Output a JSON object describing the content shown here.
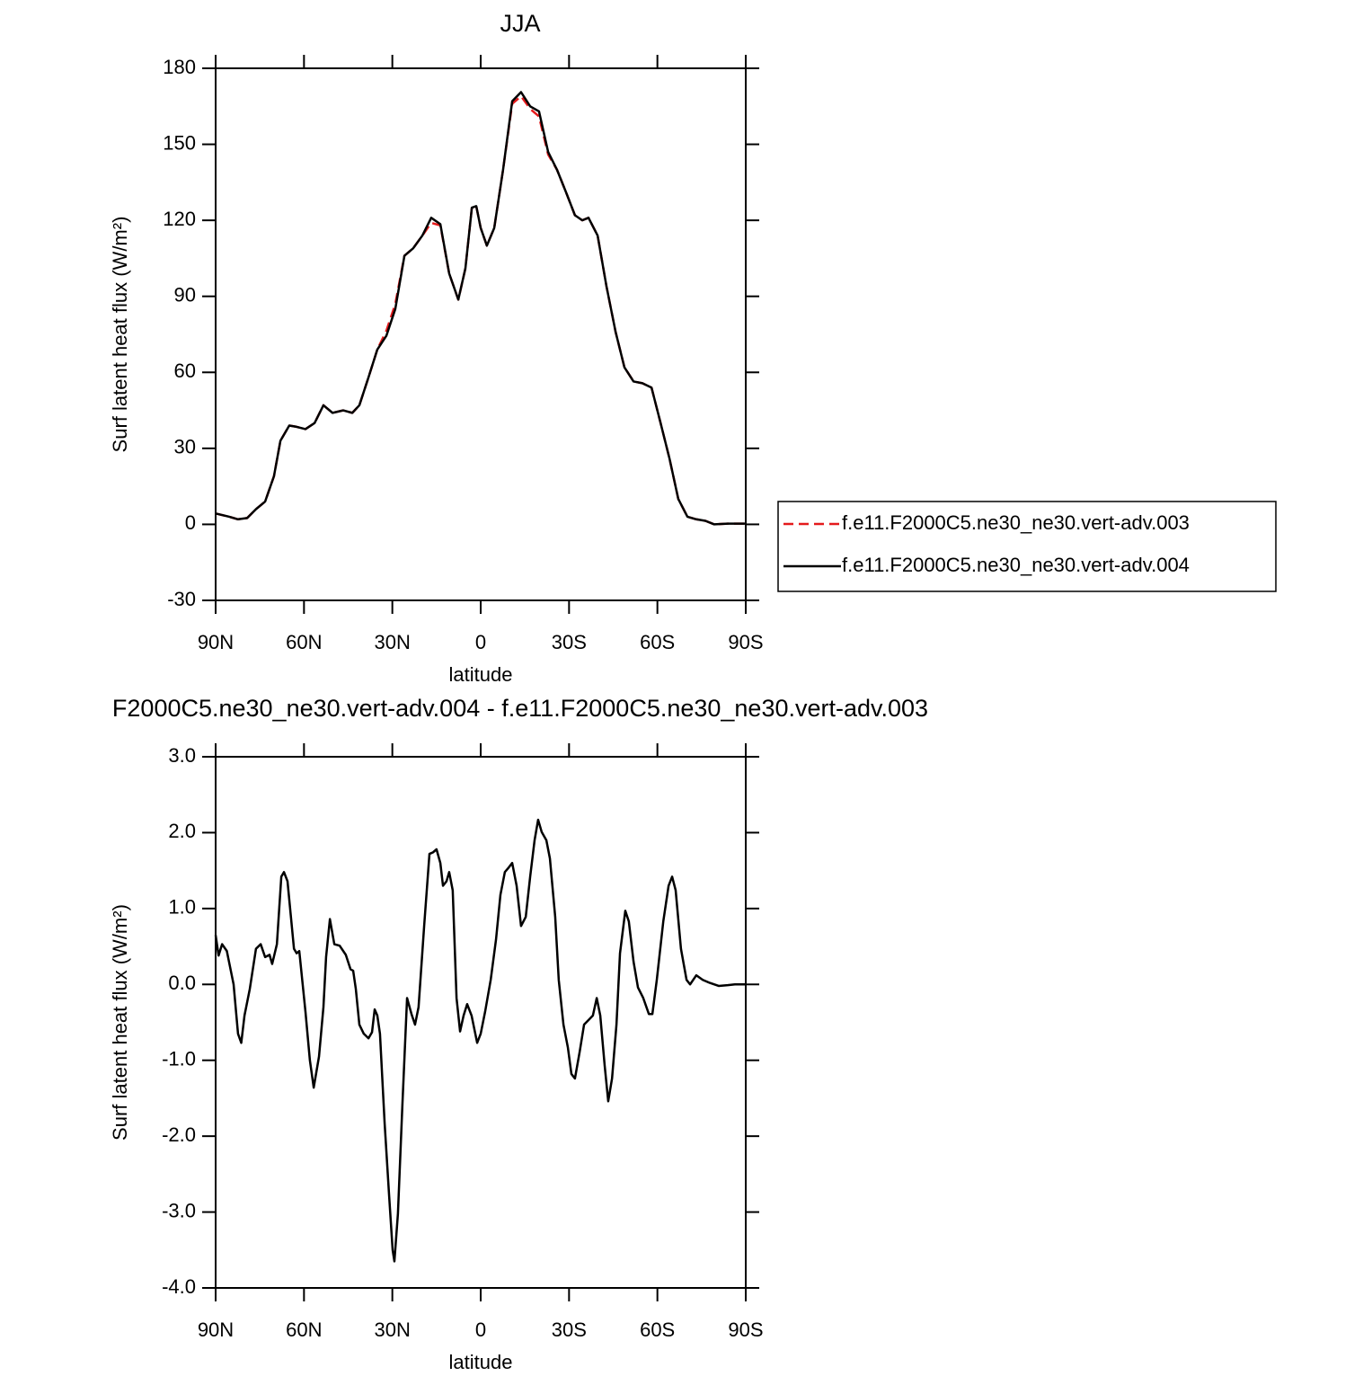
{
  "chart_data": [
    {
      "type": "line",
      "title": "JJA",
      "x_label": "latitude",
      "y_label": "Surf latent heat flux (W/m²)",
      "xlim": [
        90,
        -90
      ],
      "xticks": [
        {
          "value": 90,
          "label": "90N"
        },
        {
          "value": 60,
          "label": "60N"
        },
        {
          "value": 30,
          "label": "30N"
        },
        0,
        {
          "value": -30,
          "label": "30S"
        },
        {
          "value": -60,
          "label": "60S"
        },
        {
          "value": -90,
          "label": "90S"
        }
      ],
      "ylim": [
        -30,
        180
      ],
      "yticks": [
        -30,
        0,
        30,
        60,
        90,
        120,
        150,
        180
      ],
      "x": [
        90,
        85.4,
        82.4,
        79.3,
        76.3,
        73.2,
        70.2,
        68,
        65,
        62.5,
        59.5,
        56.4,
        53.4,
        50.3,
        46.7,
        43.6,
        41.2,
        38.1,
        35.1,
        32,
        29,
        25.9,
        22.9,
        19.8,
        16.8,
        13.7,
        10.7,
        7.6,
        5.2,
        3,
        1.5,
        0,
        -2.1,
        -4.6,
        -7.6,
        -10.7,
        -13.7,
        -16.8,
        -19.8,
        -22.9,
        -25.9,
        -29,
        -32,
        -34.5,
        -36.6,
        -39.7,
        -42.7,
        -45.8,
        -48.8,
        -51.9,
        -54.9,
        -58,
        -61,
        -64.1,
        -67.1,
        -70.2,
        -73.2,
        -76.3,
        -79.3,
        -83.9,
        -90
      ],
      "series": [
        {
          "name": "f.e11.F2000C5.ne30_ne30.vert-adv.003",
          "color": "#e41a1c",
          "line_style": "dashed",
          "values": [
            4.3,
            3,
            2,
            2.5,
            6,
            9,
            19,
            33,
            39,
            38.5,
            37.6,
            40,
            47,
            44,
            45,
            44,
            47,
            58,
            69,
            76.5,
            87,
            106,
            109,
            114,
            119,
            118,
            99,
            88.7,
            101,
            125,
            125.6,
            117,
            110,
            117,
            140,
            166,
            169,
            164,
            161,
            146,
            140,
            131,
            122,
            120,
            121,
            114,
            94,
            76,
            62,
            56.4,
            55.7,
            54,
            40.4,
            26,
            10,
            3,
            2,
            1.4,
            0,
            0.3,
            0.3
          ]
        },
        {
          "name": "f.e11.F2000C5.ne30_ne30.vert-adv.004",
          "color": "#000000",
          "line_style": "solid",
          "values": [
            4.3,
            3,
            2,
            2.5,
            6,
            9,
            19,
            33,
            39,
            38.5,
            37.6,
            40,
            47,
            44,
            45,
            44,
            47,
            58,
            69,
            74.5,
            85,
            106,
            109,
            114,
            121,
            118.5,
            99,
            88.7,
            101,
            125,
            125.6,
            117,
            110,
            117,
            140,
            167,
            170.6,
            165,
            163,
            147,
            140,
            131,
            122,
            120,
            121,
            114,
            94,
            76,
            62,
            56.4,
            55.7,
            54,
            40.4,
            26,
            10,
            3,
            2,
            1.4,
            0,
            0.3,
            0.3
          ]
        }
      ]
    },
    {
      "type": "line",
      "title": "F2000C5.ne30_ne30.vert-adv.004 - f.e11.F2000C5.ne30_ne30.vert-adv.003",
      "x_label": "latitude",
      "y_label": "Surf latent heat flux (W/m²)",
      "xlim": [
        90,
        -90
      ],
      "xticks": [
        {
          "value": 90,
          "label": "90N"
        },
        {
          "value": 60,
          "label": "60N"
        },
        {
          "value": 30,
          "label": "30N"
        },
        0,
        {
          "value": -30,
          "label": "30S"
        },
        {
          "value": -60,
          "label": "60S"
        },
        {
          "value": -90,
          "label": "90S"
        }
      ],
      "ylim": [
        -4,
        3
      ],
      "yticks": [
        {
          "value": -4,
          "label": "-4.0"
        },
        {
          "value": -3,
          "label": "-3.0"
        },
        {
          "value": -2,
          "label": "-2.0"
        },
        {
          "value": -1,
          "label": "-1.0"
        },
        {
          "value": 0,
          "label": "0.0"
        },
        {
          "value": 1,
          "label": "1.0"
        },
        {
          "value": 2,
          "label": "2.0"
        },
        {
          "value": 3,
          "label": "3.0"
        }
      ],
      "x": [
        90,
        89,
        87.8,
        86.2,
        83.9,
        82.4,
        81.3,
        80.2,
        78.4,
        76.3,
        74.7,
        73.2,
        71.7,
        70.8,
        69.2,
        67.7,
        66.8,
        65.6,
        63.4,
        62.5,
        61.6,
        59.5,
        58,
        56.7,
        54.9,
        53.4,
        52.5,
        51.2,
        49.7,
        47.9,
        45.8,
        44.2,
        43.3,
        42.4,
        41.2,
        39.7,
        38.1,
        36.9,
        36,
        35.1,
        34.2,
        32.6,
        31.1,
        29.9,
        29.3,
        28.1,
        26.6,
        25,
        23.5,
        22.3,
        21.1,
        19.2,
        17.4,
        16.2,
        15,
        13.7,
        12.8,
        11.6,
        10.7,
        9.5,
        8.2,
        7,
        5.8,
        4.6,
        3.1,
        1.2,
        0,
        -1.5,
        -3.4,
        -5.2,
        -6.7,
        -8.2,
        -9.5,
        -10.7,
        -12.2,
        -13.7,
        -15.3,
        -16.8,
        -18.3,
        -19.5,
        -20.7,
        -22.3,
        -23.5,
        -25.3,
        -26.5,
        -28.1,
        -29.6,
        -30.8,
        -32,
        -33.6,
        -35.1,
        -36.6,
        -38.1,
        -39.4,
        -40.6,
        -42.1,
        -43.3,
        -44.6,
        -46.1,
        -47.3,
        -49.1,
        -50.3,
        -51.9,
        -53.4,
        -55.2,
        -57.1,
        -58.3,
        -59.8,
        -62,
        -63.8,
        -65,
        -66.2,
        -68,
        -69.9,
        -71.1,
        -73.2,
        -75.4,
        -77.8,
        -80.8,
        -83.9,
        -86.3,
        -90
      ],
      "series": [
        {
          "color": "#000000",
          "line_style": "solid",
          "values": [
            0.65,
            0.38,
            0.53,
            0.44,
            0,
            -0.65,
            -0.77,
            -0.41,
            -0.06,
            0.47,
            0.53,
            0.36,
            0.39,
            0.27,
            0.53,
            1.42,
            1.48,
            1.36,
            0.47,
            0.41,
            0.44,
            -0.36,
            -1.0,
            -1.36,
            -0.95,
            -0.3,
            0.36,
            0.86,
            0.53,
            0.51,
            0.39,
            0.2,
            0.18,
            -0.06,
            -0.53,
            -0.65,
            -0.71,
            -0.63,
            -0.33,
            -0.41,
            -0.65,
            -1.84,
            -2.78,
            -3.5,
            -3.65,
            -3.02,
            -1.6,
            -0.18,
            -0.39,
            -0.53,
            -0.3,
            0.77,
            1.72,
            1.74,
            1.78,
            1.6,
            1.3,
            1.36,
            1.48,
            1.24,
            -0.18,
            -0.62,
            -0.41,
            -0.26,
            -0.41,
            -0.77,
            -0.65,
            -0.36,
            0.06,
            0.59,
            1.18,
            1.48,
            1.54,
            1.6,
            1.3,
            0.77,
            0.89,
            1.42,
            1.9,
            2.17,
            2.01,
            1.9,
            1.66,
            0.89,
            0.06,
            -0.53,
            -0.83,
            -1.18,
            -1.24,
            -0.89,
            -0.53,
            -0.47,
            -0.41,
            -0.18,
            -0.41,
            -1.07,
            -1.54,
            -1.24,
            -0.53,
            0.41,
            0.97,
            0.83,
            0.3,
            -0.04,
            -0.18,
            -0.39,
            -0.39,
            0.06,
            0.83,
            1.3,
            1.42,
            1.24,
            0.47,
            0.06,
            0,
            0.12,
            0.06,
            0.02,
            -0.02,
            -0.01,
            0,
            0
          ]
        }
      ]
    }
  ]
}
